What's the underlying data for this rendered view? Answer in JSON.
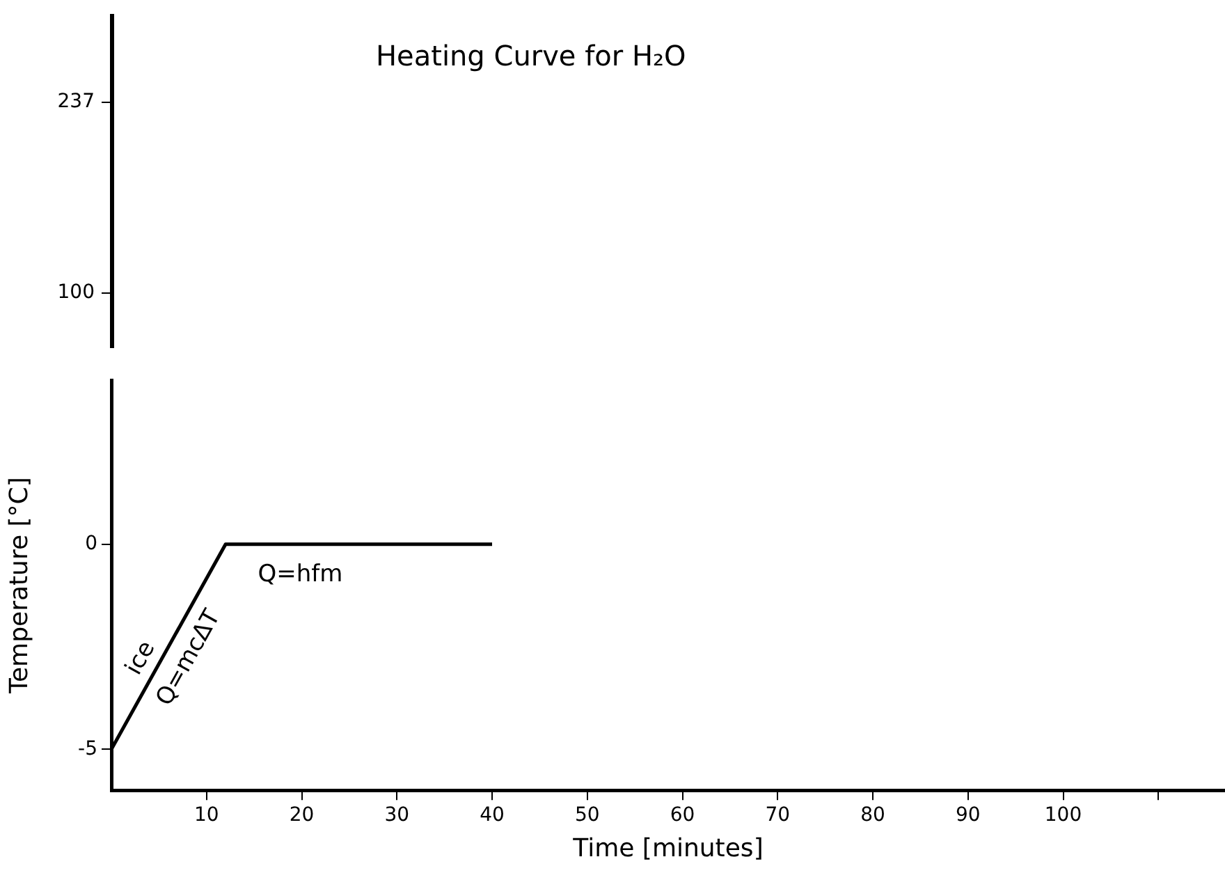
{
  "chart_data": [
    {
      "type": "other",
      "title": "Heating Curve for H₂O",
      "annotations": [
        "237",
        "100"
      ]
    },
    {
      "type": "line",
      "xlabel": "Time [minutes]",
      "ylabel": "Temperature [°C]",
      "x": [
        0,
        12,
        40
      ],
      "series": [
        {
          "type": "line",
          "color": "#000000",
          "values": [
            -5,
            0,
            0
          ]
        }
      ],
      "xlim": [
        0,
        117
      ],
      "xticks": [
        10,
        20,
        30,
        40,
        50,
        60,
        70,
        80,
        90,
        100,
        {
          "value": 110,
          "label": null
        }
      ],
      "ylim": [
        -6,
        4
      ],
      "yticks": [
        -5,
        0
      ],
      "annotations": [
        "ice",
        "Q=mcΔT",
        "Q=hfm"
      ],
      "grid": false,
      "legend": false,
      "marker": "none",
      "line_style": "solid"
    }
  ]
}
